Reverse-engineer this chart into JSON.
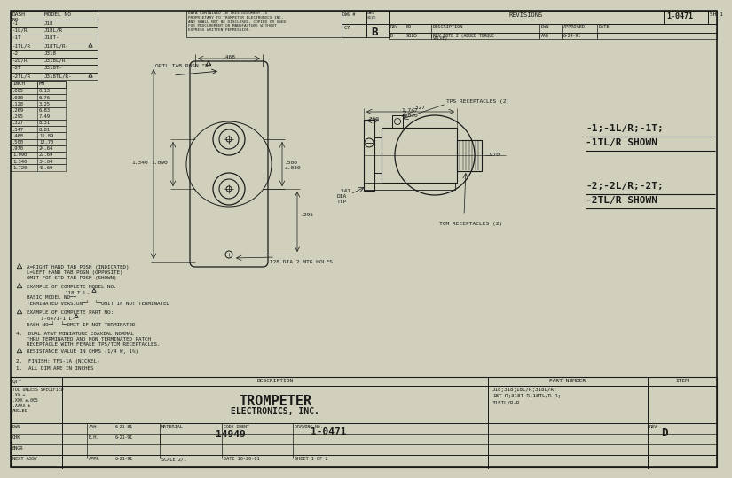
{
  "bg_color": "#d0d0bc",
  "line_color": "#1a1a1a",
  "title": "1-0471",
  "sheet": "SH 1",
  "drawing_no": "1-0471",
  "code_ident": "14949",
  "rev": "D",
  "part_numbers_line1": "J18;318;18L/R;318L/R;",
  "part_numbers_line2": "18T-R;318T-R;18TL/R-R;",
  "part_numbers_line3": "318TL/R-R",
  "scale": "SCALE 2/1",
  "date_made": "DATE 10-20-81",
  "sheet_of": "SHEET 1 OF 2",
  "dwn": "AAH",
  "dwn_date": "6-21-81",
  "chk": "B.H.",
  "chk_date": "6-21-91",
  "appr_date": "6-21-91",
  "rev_eo": "9385",
  "rev_rev": "D",
  "rev_dwn": "AAH",
  "rev_approved_date": "6-24-91",
  "dash_models": [
    [
      "-1",
      "J18"
    ],
    [
      "-1L/R",
      "J18L/R"
    ],
    [
      "-1T",
      "J18T-"
    ],
    [
      "-1TL/R",
      "J18TL/R-"
    ],
    [
      "-2",
      "J318"
    ],
    [
      "-2L/R",
      "J318L/R"
    ],
    [
      "-2T",
      "J318T-"
    ],
    [
      "-2TL/R",
      "J318TL/R-"
    ]
  ],
  "inch_mm": [
    [
      ".005",
      "0.13"
    ],
    [
      ".030",
      "0.76"
    ],
    [
      ".128",
      "3.25"
    ],
    [
      ".269",
      "6.83"
    ],
    [
      ".295",
      "7.49"
    ],
    [
      ".327",
      "8.31"
    ],
    [
      ".347",
      "8.81"
    ],
    [
      ".468",
      "11.89"
    ],
    [
      ".500",
      "12.70"
    ],
    [
      ".970",
      "24.64"
    ],
    [
      "1.090",
      "27.69"
    ],
    [
      "1.340",
      "34.04"
    ],
    [
      "1.720",
      "43.69"
    ]
  ],
  "dwg_num_block": "C7",
  "dwg_size": "B",
  "proprietary_text": "DATA CONTAINED IN THIS DOCUMENT IS\nPROPRIETARY TO TROMPETER ELECTRONICS INC.\nAND SHALL NOT BE DISCLOSED, COPIED OR USED\nFOR PROCUREMENT OR MANUFACTURE WITHOUT\nEXPRESS WRITTEN PERMISSION."
}
